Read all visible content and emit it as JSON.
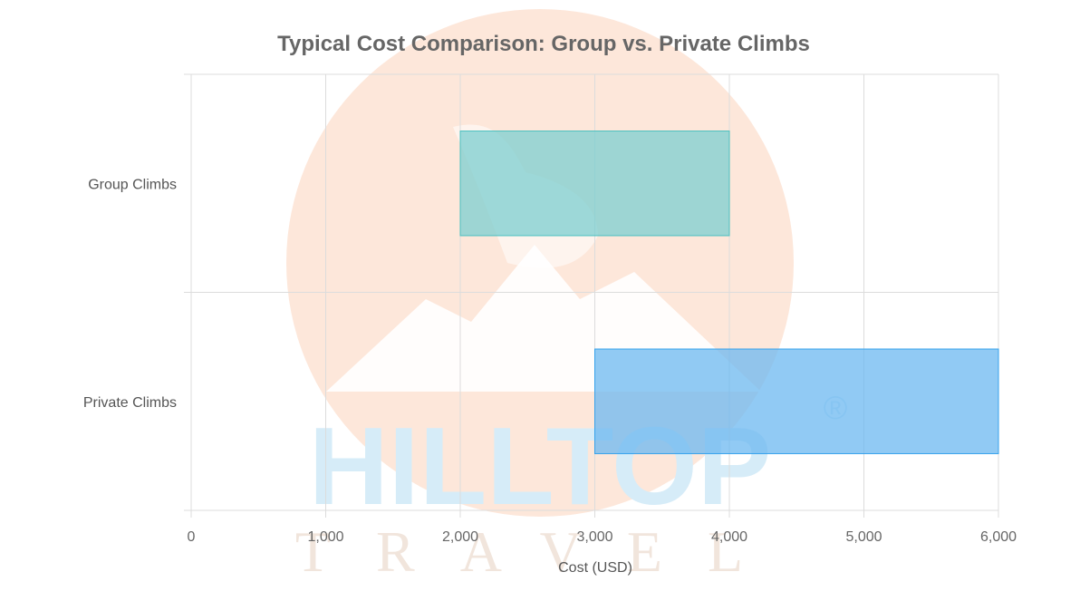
{
  "watermark": {
    "brand_main": "HILLTOP",
    "brand_sub": "TRAVEL",
    "registered_mark": "®",
    "sun_color": "#fde3d3",
    "brand_main_color": "#d6ecf8",
    "brand_sub_color": "#f1e5dc"
  },
  "chart_data": {
    "type": "bar",
    "orientation": "horizontal",
    "floating": true,
    "title": "Typical Cost Comparison: Group vs. Private Climbs",
    "xlabel": "Cost (USD)",
    "ylabel": "",
    "categories": [
      "Group Climbs",
      "Private Climbs"
    ],
    "ranges": [
      [
        2000,
        4000
      ],
      [
        3000,
        6000
      ]
    ],
    "bar_colors": [
      "#7ccfd0",
      "#6cb8f0"
    ],
    "bar_border_colors": [
      "#4bc0c0",
      "#36a2eb"
    ],
    "xlim": [
      0,
      6000
    ],
    "xticks": [
      "0",
      "1,000",
      "2,000",
      "3,000",
      "4,000",
      "5,000",
      "6,000"
    ],
    "grid": true,
    "legend": "none"
  }
}
